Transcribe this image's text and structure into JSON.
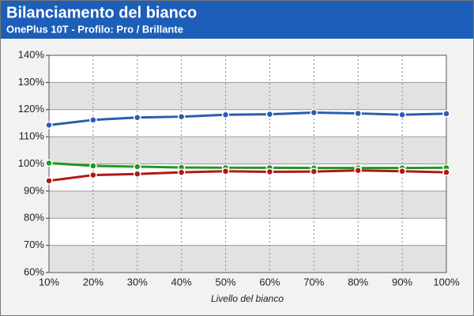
{
  "chart_data": {
    "type": "line",
    "title": "Bilanciamento del bianco",
    "subtitle": "OnePlus 10T - Profilo: Pro / Brillante",
    "x_label": "Livello del bianco",
    "categories": [
      "10%",
      "20%",
      "30%",
      "40%",
      "50%",
      "60%",
      "70%",
      "80%",
      "90%",
      "100%"
    ],
    "series": [
      {
        "color": "#2a5db0",
        "values": [
          114.3,
          116.2,
          117.1,
          117.4,
          118.1,
          118.3,
          118.9,
          118.6,
          118.1,
          118.5
        ]
      },
      {
        "color": "#1f9a1f",
        "values": [
          100.3,
          99.3,
          99.0,
          98.7,
          98.6,
          98.6,
          98.5,
          98.5,
          98.5,
          98.6
        ]
      },
      {
        "color": "#b01818",
        "values": [
          93.8,
          95.9,
          96.3,
          96.9,
          97.3,
          97.1,
          97.2,
          97.6,
          97.3,
          96.9
        ]
      }
    ],
    "ylim": [
      60,
      140
    ],
    "yticks": [
      {
        "value": 60,
        "label": "60%"
      },
      {
        "value": 70,
        "label": "70%"
      },
      {
        "value": 80,
        "label": "80%"
      },
      {
        "value": 90,
        "label": "90%"
      },
      {
        "value": 100,
        "label": "100%"
      },
      {
        "value": 110,
        "label": "110%"
      },
      {
        "value": 120,
        "label": "120%"
      },
      {
        "value": 130,
        "label": "130%"
      },
      {
        "value": 140,
        "label": "140%"
      }
    ],
    "grid": true
  }
}
